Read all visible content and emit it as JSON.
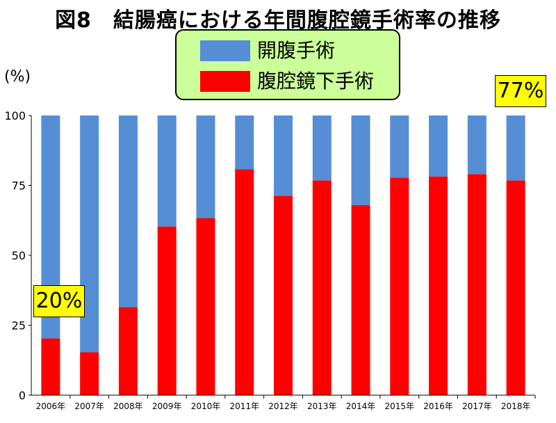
{
  "title": "図8　結腸癌における年間腹腔鏡手術率の推移",
  "unit_label": "(%)",
  "legend": [
    {
      "label": "開腹手術",
      "color": "#558ed5"
    },
    {
      "label": "腹腔鏡下手術",
      "color": "#ff0000"
    }
  ],
  "callouts": {
    "first": "20%",
    "last": "77%"
  },
  "chart_data": {
    "type": "bar",
    "stacked": true,
    "categories": [
      "2006年",
      "2007年",
      "2008年",
      "2009年",
      "2010年",
      "2011年",
      "2012年",
      "2013年",
      "2014年",
      "2015年",
      "2016年",
      "2017年",
      "2018年"
    ],
    "series": [
      {
        "name": "腹腔鏡下手術",
        "color": "#ff0000",
        "values": [
          20.3,
          15.3,
          31.5,
          60.3,
          63.3,
          80.8,
          71.3,
          76.8,
          68.0,
          77.8,
          78.2,
          79.0,
          76.8
        ]
      },
      {
        "name": "開腹手術",
        "color": "#558ed5",
        "values": [
          79.7,
          84.7,
          68.5,
          39.7,
          36.7,
          19.2,
          28.7,
          23.2,
          32.0,
          22.2,
          21.8,
          21.0,
          23.2
        ]
      }
    ],
    "ylabel": "(%)",
    "ylim": [
      0,
      100
    ],
    "yticks": [
      0,
      25,
      50,
      75,
      100
    ],
    "grid": false
  }
}
